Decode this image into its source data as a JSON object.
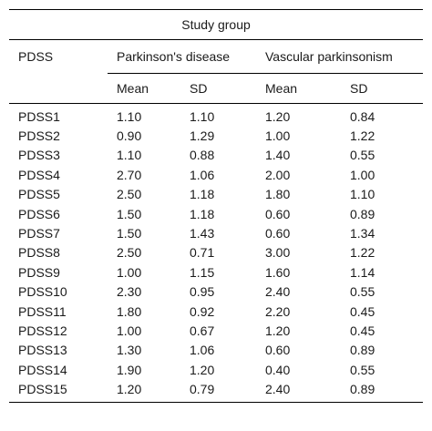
{
  "table": {
    "caption": "Study group",
    "row_header": "PDSS",
    "groups": [
      "Parkinson's disease",
      "Vascular parkinsonism"
    ],
    "stat_labels": [
      "Mean",
      "SD",
      "Mean",
      "SD"
    ],
    "rows": [
      {
        "label": "PDSS1",
        "values": [
          "1.10",
          "1.10",
          "1.20",
          "0.84"
        ]
      },
      {
        "label": "PDSS2",
        "values": [
          "0.90",
          "1.29",
          "1.00",
          "1.22"
        ]
      },
      {
        "label": "PDSS3",
        "values": [
          "1.10",
          "0.88",
          "1.40",
          "0.55"
        ]
      },
      {
        "label": "PDSS4",
        "values": [
          "2.70",
          "1.06",
          "2.00",
          "1.00"
        ]
      },
      {
        "label": "PDSS5",
        "values": [
          "2.50",
          "1.18",
          "1.80",
          "1.10"
        ]
      },
      {
        "label": "PDSS6",
        "values": [
          "1.50",
          "1.18",
          "0.60",
          "0.89"
        ]
      },
      {
        "label": "PDSS7",
        "values": [
          "1.50",
          "1.43",
          "0.60",
          "1.34"
        ]
      },
      {
        "label": "PDSS8",
        "values": [
          "2.50",
          "0.71",
          "3.00",
          "1.22"
        ]
      },
      {
        "label": "PDSS9",
        "values": [
          "1.00",
          "1.15",
          "1.60",
          "1.14"
        ]
      },
      {
        "label": "PDSS10",
        "values": [
          "2.30",
          "0.95",
          "2.40",
          "0.55"
        ]
      },
      {
        "label": "PDSS11",
        "values": [
          "1.80",
          "0.92",
          "2.20",
          "0.45"
        ]
      },
      {
        "label": "PDSS12",
        "values": [
          "1.00",
          "0.67",
          "1.20",
          "0.45"
        ]
      },
      {
        "label": "PDSS13",
        "values": [
          "1.30",
          "1.06",
          "0.60",
          "0.89"
        ]
      },
      {
        "label": "PDSS14",
        "values": [
          "1.90",
          "1.20",
          "0.40",
          "0.55"
        ]
      },
      {
        "label": "PDSS15",
        "values": [
          "1.20",
          "0.79",
          "2.40",
          "0.89"
        ]
      }
    ]
  }
}
